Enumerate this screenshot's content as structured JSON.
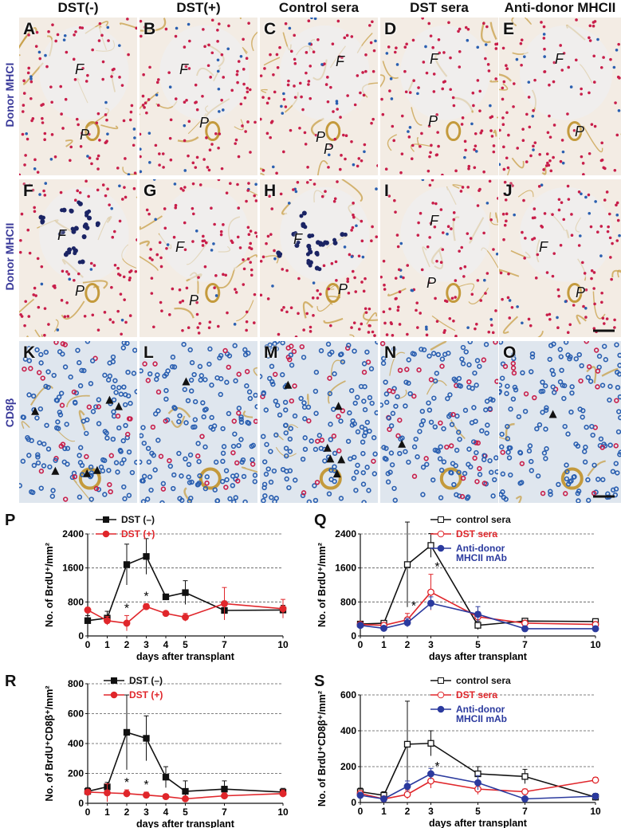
{
  "column_titles": [
    "DST(-)",
    "DST(+)",
    "Control sera",
    "DST sera",
    "Anti-donor MHCII"
  ],
  "row_titles": [
    "Donor MHCI",
    "Donor MHCII",
    "CD8β"
  ],
  "panels": [
    {
      "letter": "A",
      "regions": [
        "F",
        "P"
      ]
    },
    {
      "letter": "B",
      "regions": [
        "F",
        "P"
      ]
    },
    {
      "letter": "C",
      "regions": [
        "F",
        "P",
        "P"
      ]
    },
    {
      "letter": "D",
      "regions": [
        "F",
        "P"
      ]
    },
    {
      "letter": "E",
      "regions": [
        "F",
        "P"
      ]
    },
    {
      "letter": "F",
      "regions": [
        "F",
        "P"
      ]
    },
    {
      "letter": "G",
      "regions": [
        "F",
        "P"
      ]
    },
    {
      "letter": "H",
      "regions": [
        "F",
        "P"
      ]
    },
    {
      "letter": "I",
      "regions": [
        "F",
        "P"
      ]
    },
    {
      "letter": "J",
      "regions": [
        "F",
        "P"
      ]
    },
    {
      "letter": "K",
      "regions": []
    },
    {
      "letter": "L",
      "regions": []
    },
    {
      "letter": "M",
      "regions": []
    },
    {
      "letter": "N",
      "regions": []
    },
    {
      "letter": "O",
      "regions": []
    }
  ],
  "colors": {
    "dst_neg": "#111111",
    "dst_pos": "#e0262b",
    "control_sera": "#111111",
    "dst_sera": "#e0262b",
    "anti_mhcii": "#2b3a9e",
    "grid": "#555555",
    "tissue_bg": "#f3ece4",
    "red_cell": "#c81e4a",
    "blue_cell": "#2a5fb0",
    "navy_cell": "#1b2464",
    "vessel": "#c49a3c"
  },
  "chart_data": [
    {
      "panel": "P",
      "type": "line",
      "xlabel": "days after transplant",
      "ylabel": "No. of BrdU⁺/mm²",
      "x": [
        0,
        1,
        2,
        3,
        4,
        5,
        7,
        10
      ],
      "xticks": [
        0,
        1,
        2,
        3,
        4,
        5,
        7,
        10
      ],
      "xlim": [
        0,
        10
      ],
      "yticks": [
        0,
        800,
        1600,
        2400
      ],
      "ylim": [
        0,
        2400
      ],
      "grid": "dashed-horizontal",
      "legend": "top-right",
      "series": [
        {
          "name": "DST (–)",
          "marker": "filled-square",
          "color": "#111111",
          "values": [
            360,
            420,
            1680,
            1870,
            920,
            1020,
            600,
            610
          ],
          "errors": [
            120,
            160,
            480,
            420,
            50,
            280,
            220,
            110
          ]
        },
        {
          "name": "DST (+)",
          "marker": "filled-circle",
          "color": "#e0262b",
          "values": [
            610,
            360,
            300,
            690,
            530,
            440,
            760,
            640
          ],
          "errors": [
            60,
            100,
            180,
            70,
            40,
            90,
            380,
            220
          ]
        }
      ],
      "annotations": [
        {
          "x": 2,
          "text": "*"
        },
        {
          "x": 3,
          "text": "*"
        }
      ]
    },
    {
      "panel": "Q",
      "type": "line",
      "xlabel": "days after transplant",
      "ylabel": "No. of BrdU⁺/mm²",
      "x": [
        0,
        1,
        2,
        3,
        5,
        7,
        10
      ],
      "xticks": [
        0,
        1,
        2,
        3,
        5,
        7,
        10
      ],
      "xlim": [
        0,
        10
      ],
      "yticks": [
        0,
        800,
        1600,
        2400
      ],
      "ylim": [
        0,
        2400
      ],
      "grid": "dashed-horizontal",
      "legend": "top-right",
      "series": [
        {
          "name": "control sera",
          "marker": "open-square",
          "color": "#111111",
          "values": [
            280,
            300,
            1680,
            2130,
            250,
            350,
            340
          ],
          "errors": [
            60,
            60,
            1000,
            280,
            100,
            60,
            60
          ]
        },
        {
          "name": "DST sera",
          "marker": "open-circle",
          "color": "#e0262b",
          "values": [
            270,
            250,
            380,
            1030,
            450,
            300,
            270
          ],
          "errors": [
            50,
            50,
            150,
            420,
            120,
            60,
            60
          ]
        },
        {
          "name": "Anti-donor\nMHCII mAb",
          "marker": "filled-circle",
          "color": "#2b3a9e",
          "values": [
            250,
            180,
            310,
            770,
            510,
            170,
            170
          ],
          "errors": [
            50,
            40,
            100,
            150,
            180,
            40,
            50
          ]
        }
      ],
      "annotations": [
        {
          "x": 2,
          "text": "*"
        },
        {
          "x": 3,
          "text": "*"
        }
      ]
    },
    {
      "panel": "R",
      "type": "line",
      "xlabel": "days after transplant",
      "ylabel": "No. of BrdU⁺CD8β⁺/mm²",
      "x": [
        0,
        1,
        2,
        3,
        4,
        5,
        7,
        10
      ],
      "xticks": [
        0,
        1,
        2,
        3,
        4,
        5,
        7,
        10
      ],
      "xlim": [
        0,
        10
      ],
      "yticks": [
        0,
        200,
        400,
        600,
        800
      ],
      "ylim": [
        0,
        800
      ],
      "grid": "dashed-horizontal",
      "legend": "top-right",
      "series": [
        {
          "name": "DST (–)",
          "marker": "filled-square",
          "color": "#111111",
          "values": [
            80,
            110,
            475,
            435,
            175,
            80,
            95,
            75
          ],
          "errors": [
            25,
            30,
            250,
            150,
            70,
            70,
            55,
            25
          ]
        },
        {
          "name": "DST (+)",
          "marker": "filled-circle",
          "color": "#e0262b",
          "values": [
            75,
            70,
            65,
            55,
            45,
            30,
            50,
            65
          ],
          "errors": [
            15,
            60,
            25,
            20,
            15,
            15,
            20,
            25
          ]
        }
      ],
      "annotations": [
        {
          "x": 2,
          "text": "*"
        },
        {
          "x": 3,
          "text": "*"
        }
      ]
    },
    {
      "panel": "S",
      "type": "line",
      "xlabel": "days after transplant",
      "ylabel": "No. of BrdU⁺CD8β⁺/mm²",
      "x": [
        0,
        1,
        2,
        3,
        5,
        7,
        10
      ],
      "xticks": [
        0,
        1,
        2,
        3,
        5,
        7,
        10
      ],
      "xlim": [
        0,
        10
      ],
      "yticks": [
        0,
        200,
        400,
        600
      ],
      "ylim": [
        0,
        600
      ],
      "grid": "dashed-horizontal",
      "legend": "top-right",
      "series": [
        {
          "name": "control sera",
          "marker": "open-square",
          "color": "#111111",
          "values": [
            60,
            40,
            325,
            330,
            160,
            145,
            30
          ],
          "errors": [
            20,
            20,
            240,
            70,
            40,
            40,
            20
          ]
        },
        {
          "name": "DST sera",
          "marker": "open-circle",
          "color": "#e0262b",
          "values": [
            50,
            20,
            45,
            120,
            75,
            60,
            125
          ],
          "errors": [
            15,
            15,
            25,
            40,
            30,
            15,
            15
          ]
        },
        {
          "name": "Anti-donor\nMHCII mAb",
          "marker": "filled-circle",
          "color": "#2b3a9e",
          "values": [
            40,
            20,
            90,
            160,
            110,
            20,
            35
          ],
          "errors": [
            15,
            10,
            30,
            30,
            40,
            10,
            15
          ]
        }
      ],
      "annotations": [
        {
          "x": 3,
          "text": "*"
        }
      ]
    }
  ]
}
